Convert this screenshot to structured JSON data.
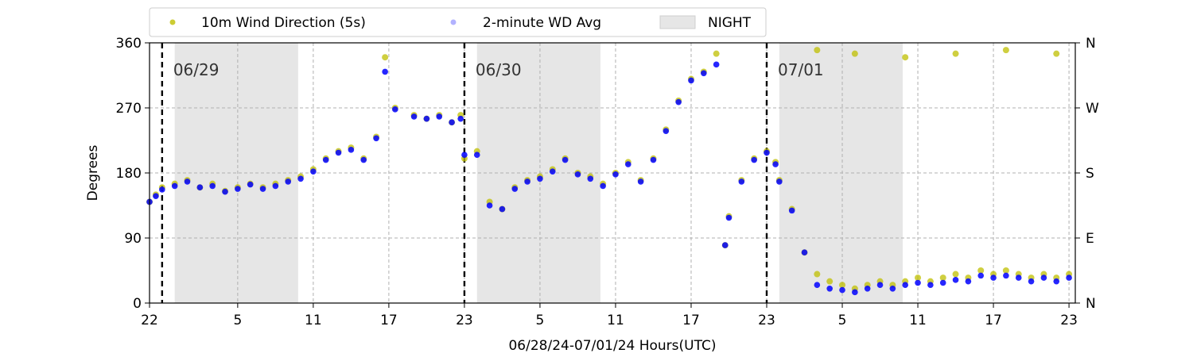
{
  "chart_data": {
    "type": "scatter",
    "xlabel": "06/28/24-07/01/24  Hours(UTC)",
    "ylabel": "Degrees",
    "ylim": [
      0,
      360
    ],
    "y_ticks": [
      0,
      90,
      180,
      270,
      360
    ],
    "y_ticks_right": [
      "N",
      "E",
      "S",
      "W",
      "N"
    ],
    "x_range_hours": [
      0,
      73.5
    ],
    "x_ticks": [
      {
        "h": 0,
        "label": "22"
      },
      {
        "h": 7,
        "label": "5"
      },
      {
        "h": 13,
        "label": "11"
      },
      {
        "h": 19,
        "label": "17"
      },
      {
        "h": 25,
        "label": "23"
      },
      {
        "h": 31,
        "label": "5"
      },
      {
        "h": 37,
        "label": "11"
      },
      {
        "h": 43,
        "label": "17"
      },
      {
        "h": 49,
        "label": "23"
      },
      {
        "h": 55,
        "label": "5"
      },
      {
        "h": 61,
        "label": "11"
      },
      {
        "h": 67,
        "label": "17"
      },
      {
        "h": 73,
        "label": "23"
      }
    ],
    "grid": true,
    "legend_position": "top-center-outside",
    "day_markers": [
      {
        "h": 1,
        "label": "06/29"
      },
      {
        "h": 25,
        "label": "06/30"
      },
      {
        "h": 49,
        "label": "07/01"
      }
    ],
    "night_periods": [
      [
        2,
        11.8
      ],
      [
        26,
        35.8
      ],
      [
        50,
        59.8
      ]
    ],
    "series": [
      {
        "name": "10m Wind Direction (5s)",
        "color": "#bfbf00",
        "style": "dots",
        "points": [
          [
            0,
            140
          ],
          [
            0.5,
            150
          ],
          [
            1,
            160
          ],
          [
            2,
            165
          ],
          [
            3,
            170
          ],
          [
            4,
            160
          ],
          [
            5,
            165
          ],
          [
            6,
            155
          ],
          [
            7,
            160
          ],
          [
            8,
            165
          ],
          [
            9,
            160
          ],
          [
            10,
            165
          ],
          [
            11,
            170
          ],
          [
            12,
            175
          ],
          [
            13,
            185
          ],
          [
            14,
            200
          ],
          [
            15,
            210
          ],
          [
            16,
            215
          ],
          [
            17,
            200
          ],
          [
            18,
            230
          ],
          [
            18.7,
            340
          ],
          [
            19.5,
            270
          ],
          [
            21,
            260
          ],
          [
            22,
            255
          ],
          [
            23,
            260
          ],
          [
            24,
            250
          ],
          [
            24.7,
            260
          ],
          [
            25,
            200
          ],
          [
            26,
            210
          ],
          [
            27,
            140
          ],
          [
            28,
            130
          ],
          [
            29,
            160
          ],
          [
            30,
            170
          ],
          [
            31,
            175
          ],
          [
            32,
            185
          ],
          [
            33,
            200
          ],
          [
            34,
            180
          ],
          [
            35,
            175
          ],
          [
            36,
            165
          ],
          [
            37,
            180
          ],
          [
            38,
            195
          ],
          [
            39,
            170
          ],
          [
            40,
            200
          ],
          [
            41,
            240
          ],
          [
            42,
            280
          ],
          [
            43,
            310
          ],
          [
            44,
            320
          ],
          [
            45,
            345
          ],
          [
            45.7,
            80
          ],
          [
            46,
            120
          ],
          [
            47,
            170
          ],
          [
            48,
            200
          ],
          [
            49,
            210
          ],
          [
            49.7,
            195
          ],
          [
            50,
            170
          ],
          [
            51,
            130
          ],
          [
            52,
            70
          ],
          [
            53,
            40
          ],
          [
            54,
            30
          ],
          [
            55,
            25
          ],
          [
            56,
            20
          ],
          [
            57,
            25
          ],
          [
            58,
            30
          ],
          [
            59,
            25
          ],
          [
            60,
            30
          ],
          [
            61,
            35
          ],
          [
            62,
            30
          ],
          [
            63,
            35
          ],
          [
            64,
            40
          ],
          [
            65,
            35
          ],
          [
            66,
            45
          ],
          [
            67,
            40
          ],
          [
            68,
            45
          ],
          [
            69,
            40
          ],
          [
            70,
            35
          ],
          [
            71,
            40
          ],
          [
            72,
            35
          ],
          [
            73,
            40
          ],
          [
            53,
            350
          ],
          [
            56,
            345
          ],
          [
            60,
            340
          ],
          [
            64,
            345
          ],
          [
            68,
            350
          ],
          [
            72,
            345
          ]
        ]
      },
      {
        "name": "2-minute WD Avg",
        "color": "#0000ff",
        "style": "dots",
        "points": [
          [
            0,
            140
          ],
          [
            0.5,
            148
          ],
          [
            1,
            157
          ],
          [
            2,
            162
          ],
          [
            3,
            168
          ],
          [
            4,
            160
          ],
          [
            5,
            162
          ],
          [
            6,
            154
          ],
          [
            7,
            158
          ],
          [
            8,
            164
          ],
          [
            9,
            158
          ],
          [
            10,
            162
          ],
          [
            11,
            168
          ],
          [
            12,
            172
          ],
          [
            13,
            182
          ],
          [
            14,
            198
          ],
          [
            15,
            208
          ],
          [
            16,
            212
          ],
          [
            17,
            198
          ],
          [
            18,
            228
          ],
          [
            18.7,
            320
          ],
          [
            19.5,
            268
          ],
          [
            21,
            258
          ],
          [
            22,
            255
          ],
          [
            23,
            258
          ],
          [
            24,
            250
          ],
          [
            24.7,
            255
          ],
          [
            25,
            205
          ],
          [
            26,
            205
          ],
          [
            27,
            135
          ],
          [
            28,
            130
          ],
          [
            29,
            158
          ],
          [
            30,
            168
          ],
          [
            31,
            172
          ],
          [
            32,
            182
          ],
          [
            33,
            198
          ],
          [
            34,
            178
          ],
          [
            35,
            172
          ],
          [
            36,
            162
          ],
          [
            37,
            178
          ],
          [
            38,
            192
          ],
          [
            39,
            168
          ],
          [
            40,
            198
          ],
          [
            41,
            238
          ],
          [
            42,
            278
          ],
          [
            43,
            308
          ],
          [
            44,
            318
          ],
          [
            45,
            330
          ],
          [
            45.7,
            80
          ],
          [
            46,
            118
          ],
          [
            47,
            168
          ],
          [
            48,
            198
          ],
          [
            49,
            208
          ],
          [
            49.7,
            192
          ],
          [
            50,
            168
          ],
          [
            51,
            128
          ],
          [
            52,
            70
          ],
          [
            53,
            25
          ],
          [
            54,
            20
          ],
          [
            55,
            18
          ],
          [
            56,
            15
          ],
          [
            57,
            20
          ],
          [
            58,
            25
          ],
          [
            59,
            20
          ],
          [
            60,
            25
          ],
          [
            61,
            28
          ],
          [
            62,
            25
          ],
          [
            63,
            28
          ],
          [
            64,
            32
          ],
          [
            65,
            30
          ],
          [
            66,
            38
          ],
          [
            67,
            35
          ],
          [
            68,
            38
          ],
          [
            69,
            35
          ],
          [
            70,
            30
          ],
          [
            71,
            35
          ],
          [
            72,
            30
          ],
          [
            73,
            35
          ]
        ]
      },
      {
        "name": "NIGHT",
        "color": "#e6e6e6",
        "style": "patch"
      }
    ]
  }
}
